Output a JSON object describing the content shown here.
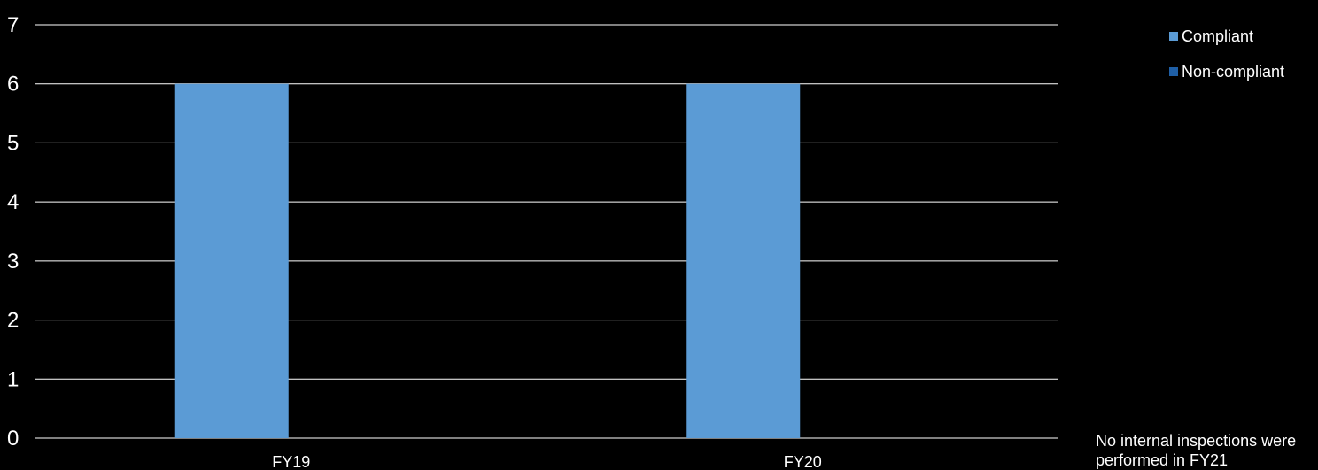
{
  "chart_data": {
    "type": "bar",
    "categories": [
      "FY19",
      "FY20"
    ],
    "series": [
      {
        "name": "Compliant",
        "values": [
          6,
          6
        ],
        "color": "#5b9bd5"
      },
      {
        "name": "Non-compliant",
        "values": [
          0,
          0
        ],
        "color": "#1f5fa6"
      }
    ],
    "ylim": [
      0,
      7
    ],
    "yticks": [
      "0",
      "1",
      "2",
      "3",
      "4",
      "5",
      "6",
      "7"
    ],
    "grid": true,
    "legend_position": "top-right"
  },
  "note": "No internal inspections were performed in FY21",
  "colors": {
    "background": "#000000",
    "gridline": "#ffffff",
    "text": "#ffffff"
  }
}
